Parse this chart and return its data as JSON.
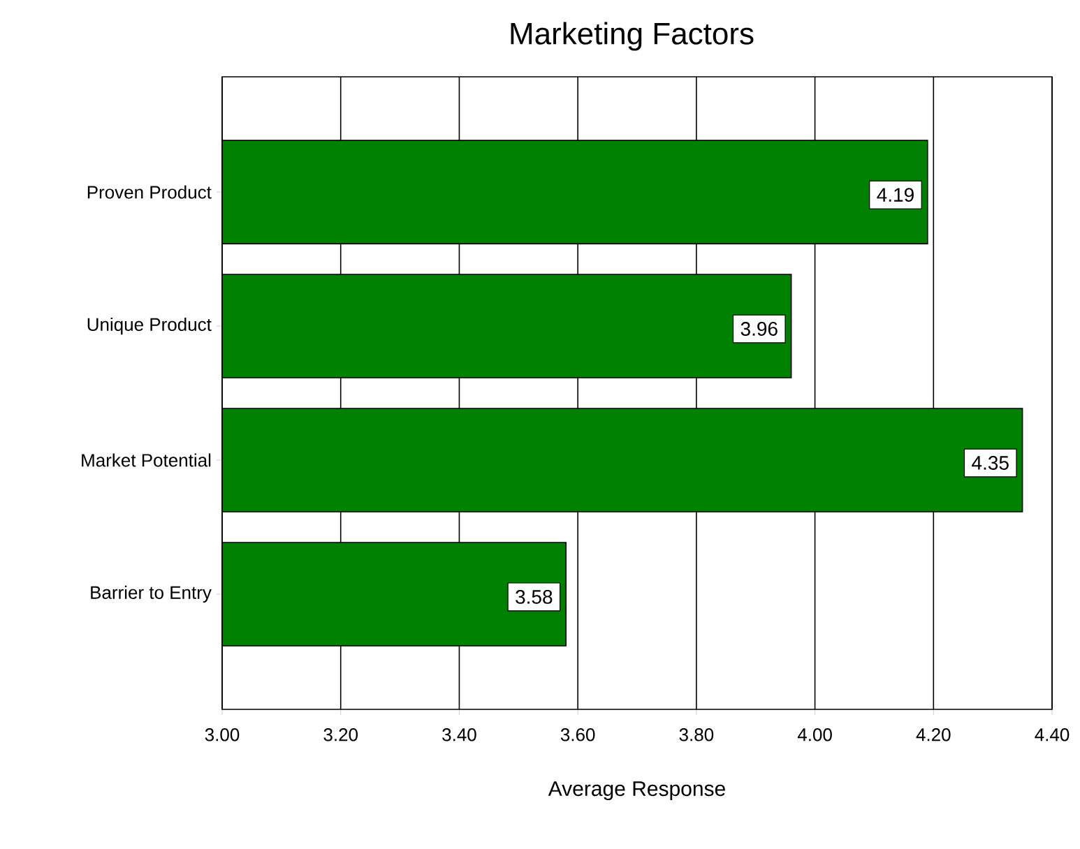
{
  "chart_data": {
    "type": "bar",
    "orientation": "horizontal",
    "title": "Marketing Factors",
    "xlabel": "Average Response",
    "categories": [
      "Proven Product",
      "Unique Product",
      "Market Potential",
      "Barrier to Entry"
    ],
    "values": [
      4.19,
      3.96,
      4.35,
      3.58
    ],
    "color": "#008000",
    "xlim": [
      3.0,
      4.4
    ],
    "xticks": [
      {
        "value": 3.0,
        "label": "3.00"
      },
      {
        "value": 3.2,
        "label": "3.20"
      },
      {
        "value": 3.4,
        "label": "3.40"
      },
      {
        "value": 3.6,
        "label": "3.60"
      },
      {
        "value": 3.8,
        "label": "3.80"
      },
      {
        "value": 4.0,
        "label": "4.00"
      },
      {
        "value": 4.2,
        "label": "4.20"
      },
      {
        "value": 4.4,
        "label": "4.40"
      }
    ],
    "grid": "x",
    "data_labels": true
  }
}
